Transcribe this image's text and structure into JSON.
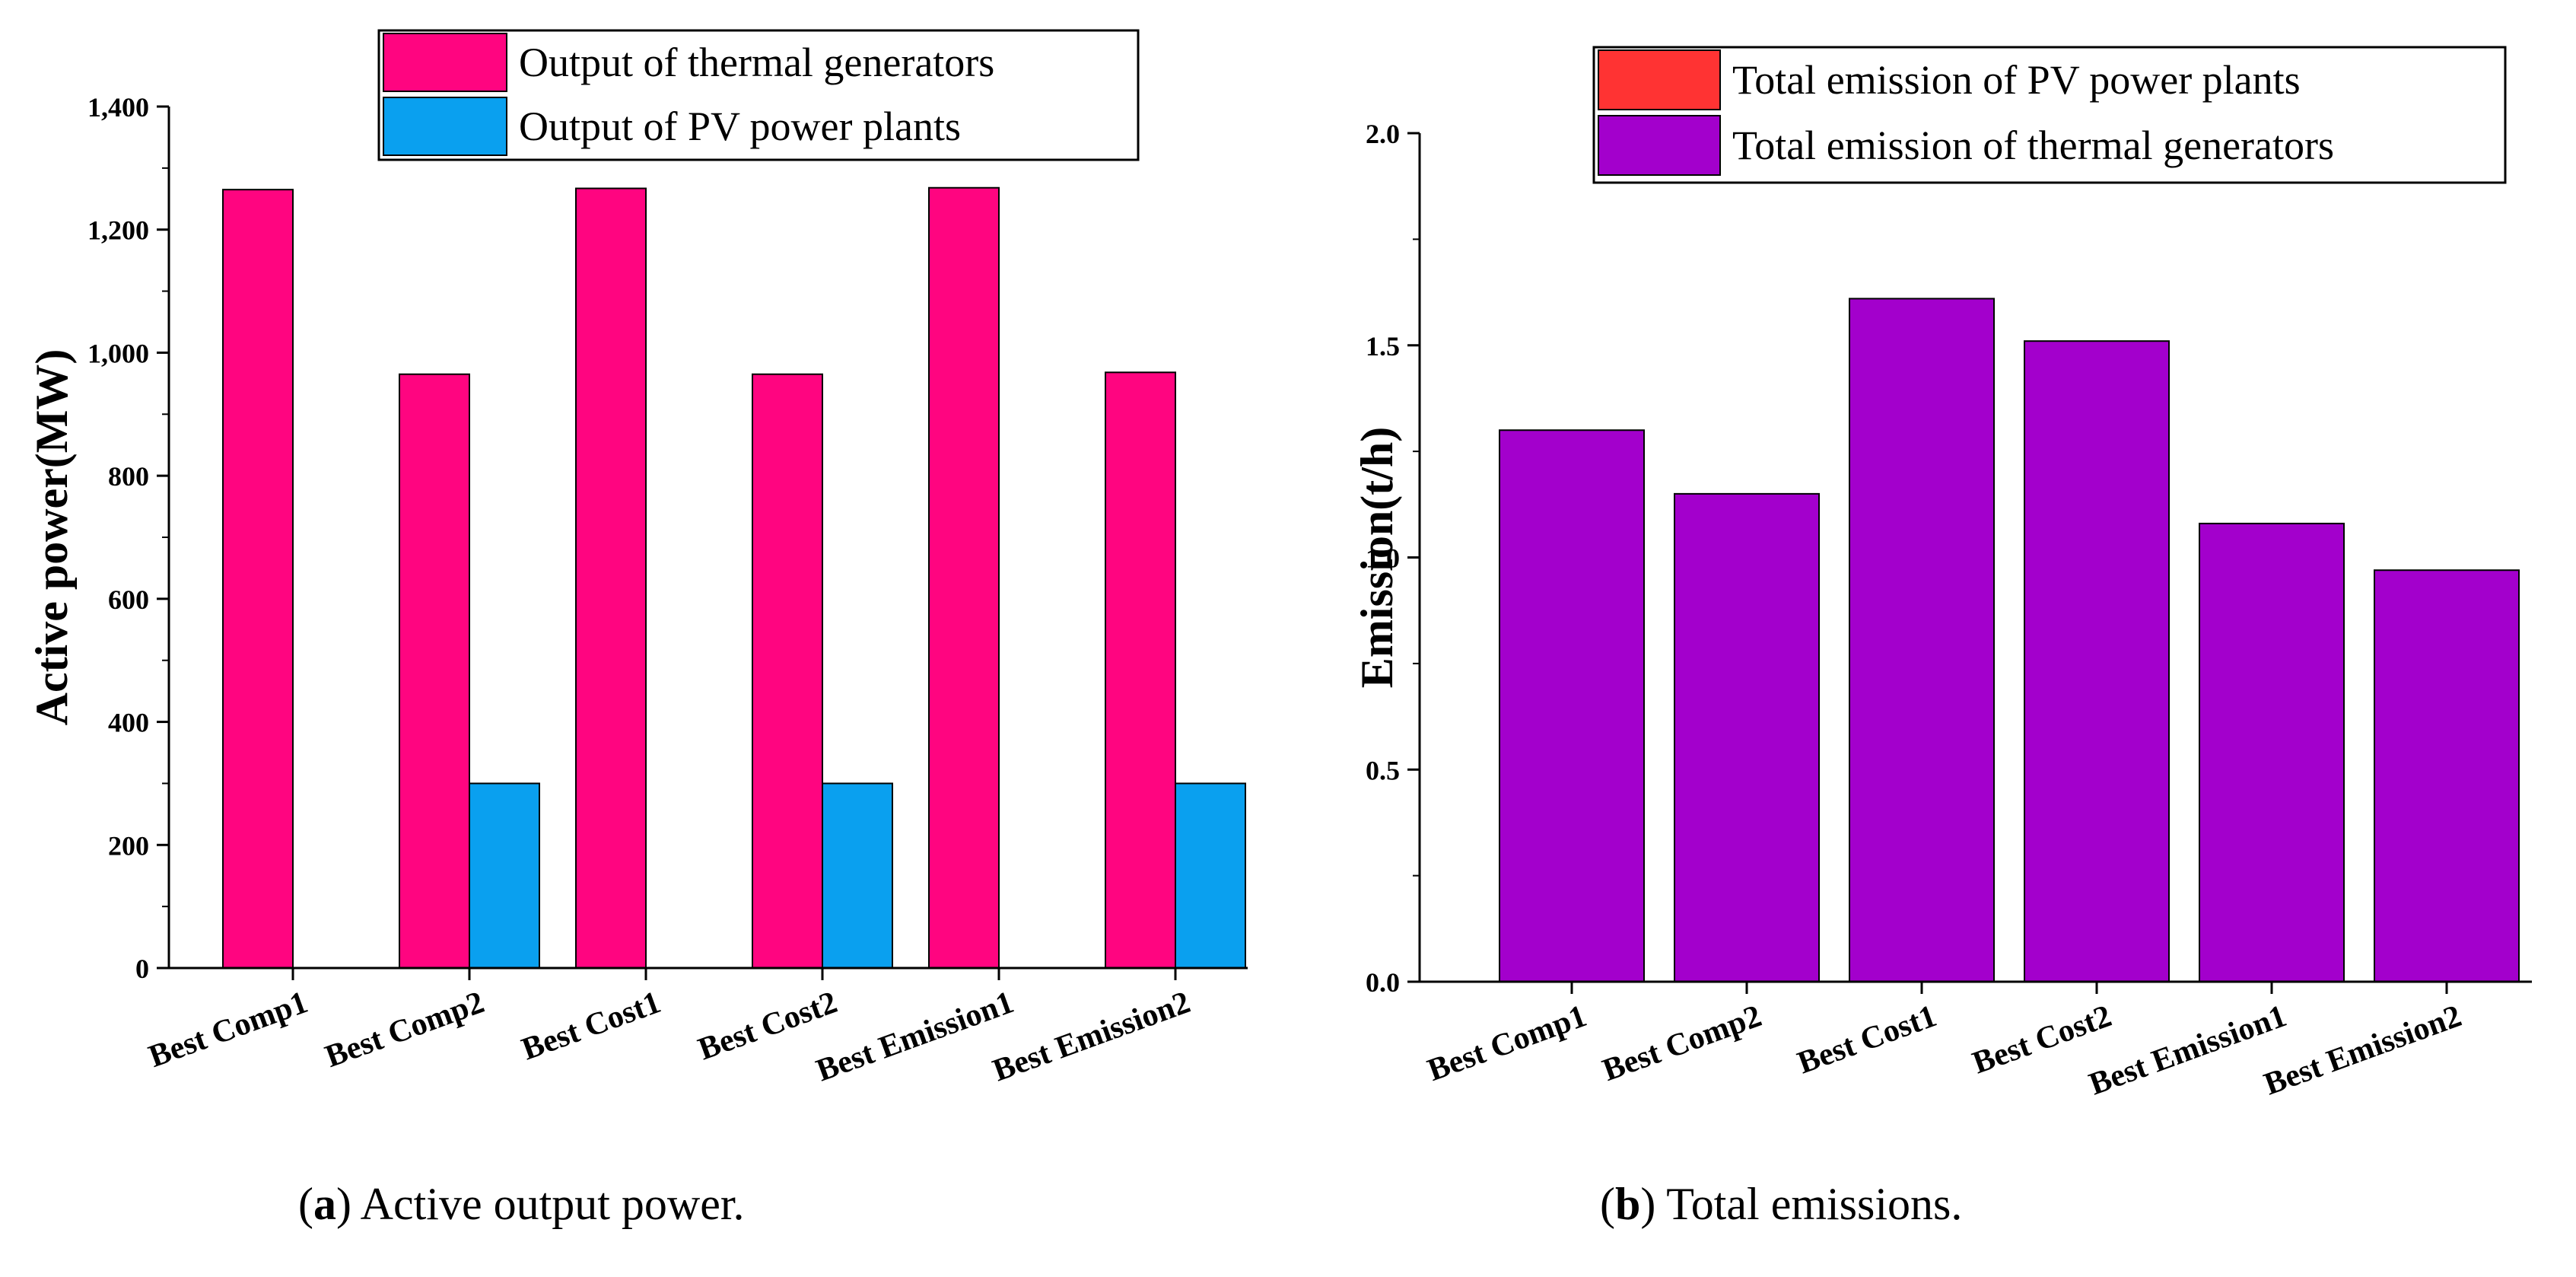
{
  "chart_data": [
    {
      "type": "bar",
      "title": "",
      "xlabel": "",
      "ylabel": "Active power(MW)",
      "ylim": [
        0,
        1400
      ],
      "yticks": [
        "0",
        "200",
        "400",
        "600",
        "800",
        "1,000",
        "1,200",
        "1,400"
      ],
      "ytick_values": [
        0,
        200,
        400,
        600,
        800,
        1000,
        1200,
        1400
      ],
      "grid": false,
      "legend_position": "top-right",
      "categories": [
        "Best Comp1",
        "Best Comp2",
        "Best Cost1",
        "Best Cost2",
        "Best Emission1",
        "Best Emission2"
      ],
      "series": [
        {
          "name": "Output of thermal generators",
          "color": "#ff0580",
          "values": [
            1265,
            965,
            1267,
            965,
            1268,
            968
          ]
        },
        {
          "name": "Output of PV power plants",
          "color": "#0aa0ef",
          "values": [
            0,
            300,
            0,
            300,
            0,
            300
          ]
        }
      ],
      "caption_label": "a",
      "caption_text": "Active output power."
    },
    {
      "type": "bar",
      "title": "",
      "xlabel": "",
      "ylabel": "Emission(t/h)",
      "ylim": [
        0,
        2.0
      ],
      "yticks": [
        "0.0",
        "0.5",
        "1.0",
        "1.5",
        "2.0"
      ],
      "ytick_values": [
        0,
        0.5,
        1.0,
        1.5,
        2.0
      ],
      "grid": false,
      "legend_position": "top-right",
      "categories": [
        "Best Comp1",
        "Best Comp2",
        "Best Cost1",
        "Best Cost2",
        "Best Emission1",
        "Best Emission2"
      ],
      "stacked": true,
      "series": [
        {
          "name": "Total emission of PV power plants",
          "color": "#ff3333",
          "values": [
            0,
            0,
            0,
            0,
            0,
            0
          ]
        },
        {
          "name": "Total emission of thermal generators",
          "color": "#a300cc",
          "values": [
            1.3,
            1.15,
            1.61,
            1.51,
            1.08,
            0.97
          ]
        }
      ],
      "caption_label": "b",
      "caption_text": "Total emissions."
    }
  ]
}
